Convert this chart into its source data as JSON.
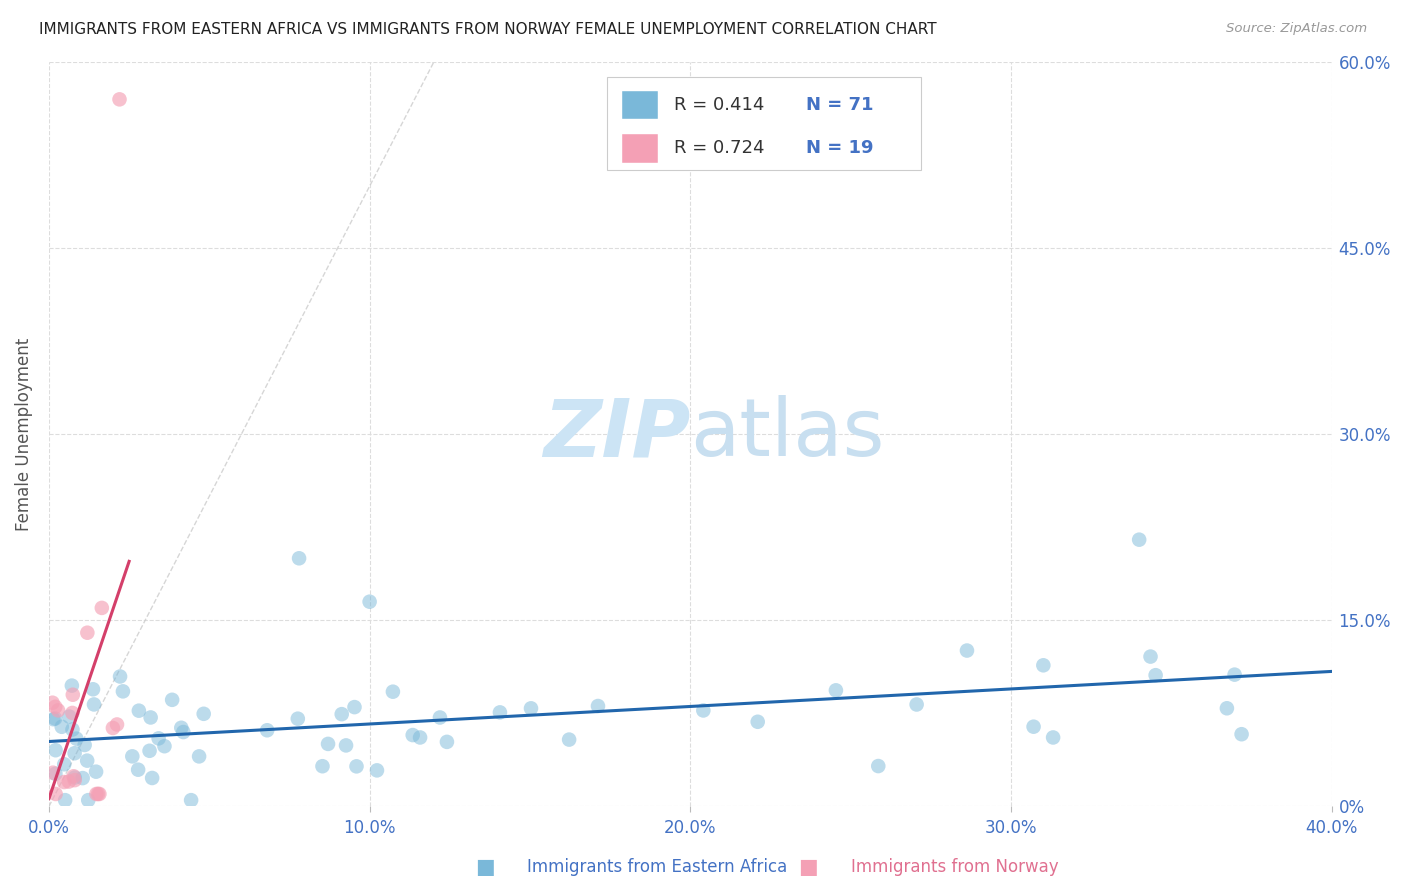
{
  "title": "IMMIGRANTS FROM EASTERN AFRICA VS IMMIGRANTS FROM NORWAY FEMALE UNEMPLOYMENT CORRELATION CHART",
  "source": "Source: ZipAtlas.com",
  "ylabel_label": "Female Unemployment",
  "xlabel_label_blue": "Immigrants from Eastern Africa",
  "xlabel_label_pink": "Immigrants from Norway",
  "legend_blue_R": "0.414",
  "legend_blue_N": "71",
  "legend_pink_R": "0.724",
  "legend_pink_N": "19",
  "blue_color": "#7ab8d9",
  "pink_color": "#f4a0b5",
  "trendline_blue_color": "#2166ac",
  "trendline_pink_color": "#d43f6a",
  "trendline_diagonal_color": "#cccccc",
  "watermark_zip_color": "#cce4f5",
  "watermark_atlas_color": "#c8dff0",
  "background_color": "#ffffff",
  "tick_color": "#4472c4",
  "xlim": [
    0.0,
    0.4
  ],
  "ylim": [
    0.0,
    0.6
  ],
  "xticks": [
    0.0,
    0.1,
    0.2,
    0.3,
    0.4
  ],
  "xtick_labels": [
    "0.0%",
    "10.0%",
    "20.0%",
    "30.0%",
    "40.0%"
  ],
  "yticks": [
    0.0,
    0.15,
    0.3,
    0.45,
    0.6
  ],
  "ytick_labels": [
    "0%",
    "15.0%",
    "30.0%",
    "45.0%",
    "60.0%"
  ]
}
